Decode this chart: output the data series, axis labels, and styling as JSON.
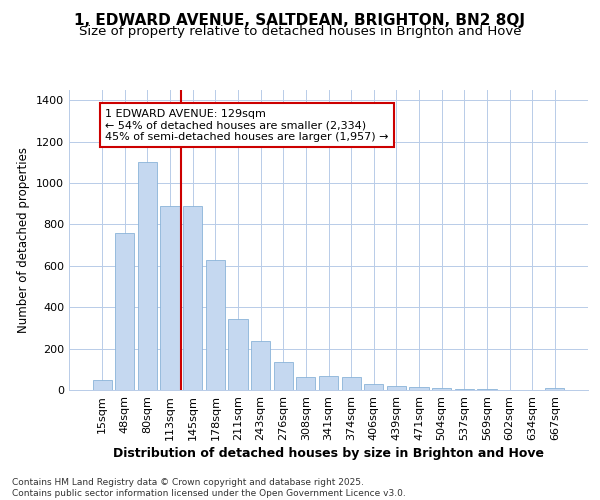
{
  "title": "1, EDWARD AVENUE, SALTDEAN, BRIGHTON, BN2 8QJ",
  "subtitle": "Size of property relative to detached houses in Brighton and Hove",
  "xlabel": "Distribution of detached houses by size in Brighton and Hove",
  "ylabel": "Number of detached properties",
  "categories": [
    "15sqm",
    "48sqm",
    "80sqm",
    "113sqm",
    "145sqm",
    "178sqm",
    "211sqm",
    "243sqm",
    "276sqm",
    "308sqm",
    "341sqm",
    "374sqm",
    "406sqm",
    "439sqm",
    "471sqm",
    "504sqm",
    "537sqm",
    "569sqm",
    "602sqm",
    "634sqm",
    "667sqm"
  ],
  "values": [
    50,
    760,
    1100,
    890,
    890,
    630,
    345,
    235,
    135,
    65,
    70,
    65,
    28,
    18,
    15,
    8,
    4,
    3,
    2,
    2,
    10
  ],
  "bar_color": "#c5d8f0",
  "bar_edgecolor": "#8ab4d8",
  "annotation_text_line1": "1 EDWARD AVENUE: 129sqm",
  "annotation_text_line2": "← 54% of detached houses are smaller (2,334)",
  "annotation_text_line3": "45% of semi-detached houses are larger (1,957) →",
  "vline_x": 3.5,
  "vline_color": "#cc0000",
  "ylim": [
    0,
    1450
  ],
  "yticks": [
    0,
    200,
    400,
    600,
    800,
    1000,
    1200,
    1400
  ],
  "background_color": "#ffffff",
  "plot_background": "#ffffff",
  "footer_line1": "Contains HM Land Registry data © Crown copyright and database right 2025.",
  "footer_line2": "Contains public sector information licensed under the Open Government Licence v3.0.",
  "title_fontsize": 11,
  "subtitle_fontsize": 9.5,
  "xlabel_fontsize": 9,
  "ylabel_fontsize": 8.5,
  "tick_fontsize": 8,
  "annotation_fontsize": 8
}
